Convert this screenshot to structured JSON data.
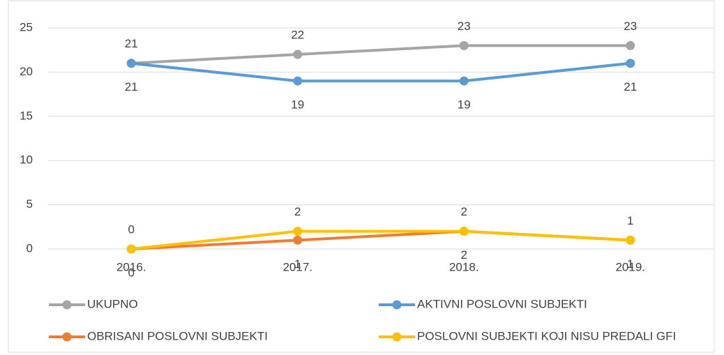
{
  "chart_data": {
    "type": "line",
    "categories": [
      "2016.",
      "2017.",
      "2018.",
      "2019."
    ],
    "series": [
      {
        "name": "UKUPNO",
        "color": "#a5a5a5",
        "values": [
          21,
          22,
          23,
          23
        ],
        "label_position": "above"
      },
      {
        "name": "AKTIVNI POSLOVNI SUBJEKTI",
        "color": "#5b9bd5",
        "values": [
          21,
          19,
          19,
          21
        ],
        "label_position": "below"
      },
      {
        "name": "OBRISANI POSLOVNI SUBJEKTI",
        "color": "#ed7d31",
        "values": [
          0,
          1,
          2,
          1
        ],
        "label_position": "below"
      },
      {
        "name": "POSLOVNI SUBJEKTI KOJI NISU PREDALI GFI",
        "color": "#ffc000",
        "values": [
          0,
          2,
          2,
          1
        ],
        "label_position": "above"
      }
    ],
    "ylim": [
      0,
      25
    ],
    "yticks": [
      0,
      5,
      10,
      15,
      20,
      25
    ],
    "grid": true,
    "legend": "bottom"
  }
}
